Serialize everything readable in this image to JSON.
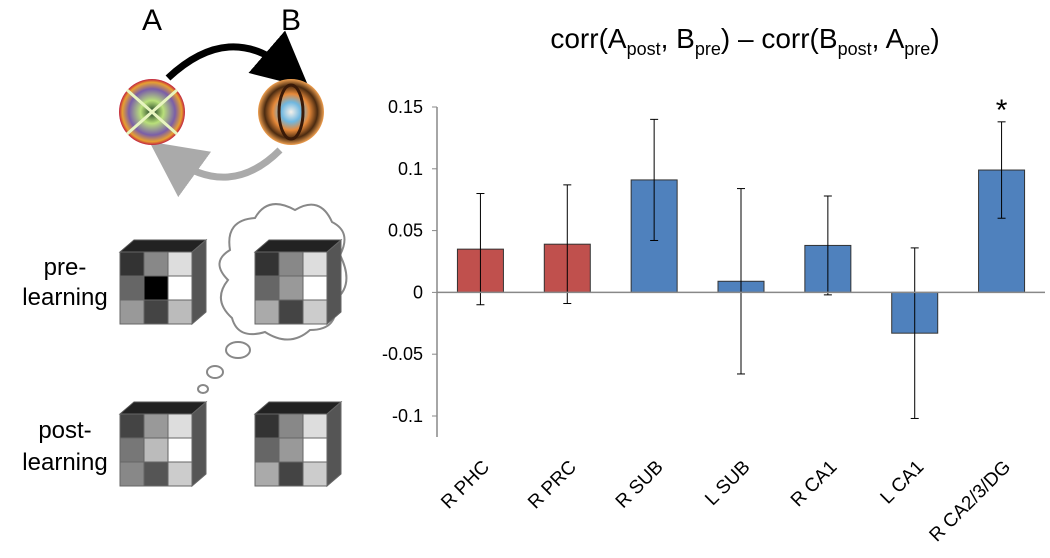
{
  "diagram": {
    "label_a": "A",
    "label_b": "B",
    "pre_label": [
      "pre-",
      "learning"
    ],
    "post_label": [
      "post-",
      "learning"
    ]
  },
  "chart_data": {
    "type": "bar",
    "title": [
      "corr(A",
      "post",
      ", B",
      "pre",
      ") – corr(B",
      "post",
      ", A",
      "pre",
      ")"
    ],
    "categories": [
      "R PHC",
      "R PRC",
      "R SUB",
      "L SUB",
      "R CA1",
      "L CA1",
      "R CA2/3/DG"
    ],
    "values": [
      0.035,
      0.039,
      0.091,
      0.009,
      0.038,
      -0.033,
      0.099
    ],
    "errors": [
      0.045,
      0.048,
      0.049,
      0.075,
      0.04,
      0.069,
      0.039
    ],
    "colors": [
      "#c0504d",
      "#c0504d",
      "#4f81bd",
      "#4f81bd",
      "#4f81bd",
      "#4f81bd",
      "#4f81bd"
    ],
    "ylim": [
      -0.117,
      0.15
    ],
    "yticks": [
      -0.1,
      -0.05,
      0,
      0.05,
      0.1,
      0.15
    ],
    "annotation": {
      "text": "*",
      "category": "R CA2/3/DG"
    }
  }
}
